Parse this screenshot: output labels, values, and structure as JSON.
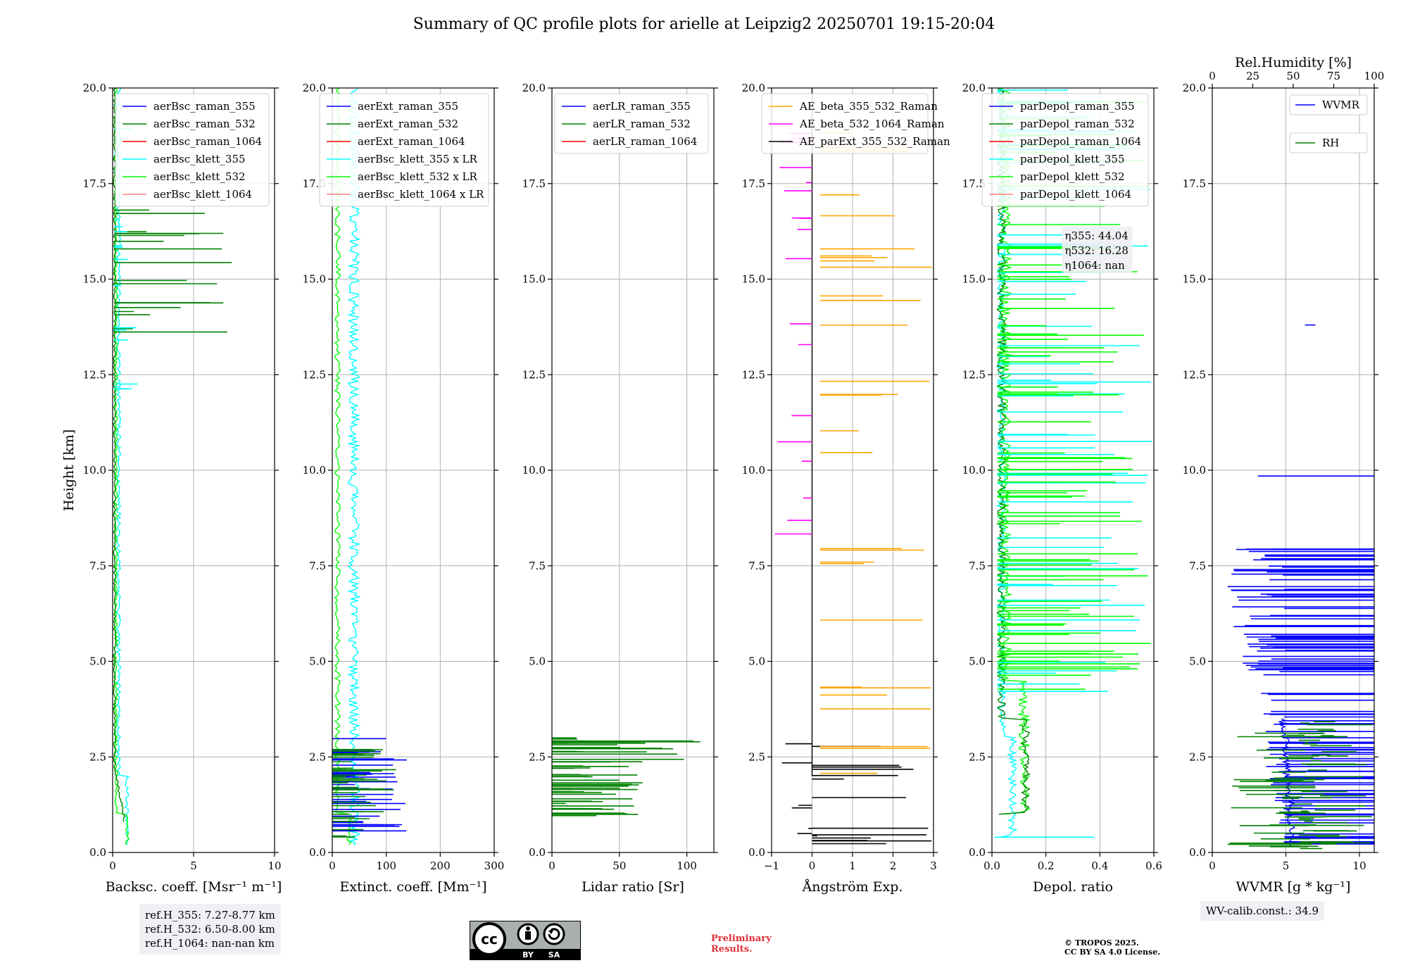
{
  "title": "Summary of QC profile plots for arielle at Leipzig2 20250701 19:15-20:04",
  "chart_data": [
    {
      "type": "line",
      "id": "backscatter",
      "xlabel": "Backsc. coeff. [Msr⁻¹ m⁻¹]",
      "ylabel": "Height [km]",
      "xlim": [
        0,
        10
      ],
      "ylim": [
        0,
        20
      ],
      "xticks": [
        0,
        5,
        10
      ],
      "yticks": [
        0.0,
        2.5,
        5.0,
        7.5,
        10.0,
        12.5,
        15.0,
        17.5,
        20.0
      ],
      "grid": true,
      "legend_position": "top-right",
      "series": [
        {
          "name": "aerBsc_raman_355",
          "color": "#0000ff"
        },
        {
          "name": "aerBsc_raman_532",
          "color": "#008000"
        },
        {
          "name": "aerBsc_raman_1064",
          "color": "#ff0000"
        },
        {
          "name": "aerBsc_klett_355",
          "color": "#00ffff"
        },
        {
          "name": "aerBsc_klett_532",
          "color": "#00ff00"
        },
        {
          "name": "aerBsc_klett_1064",
          "color": "#ff7f7f"
        }
      ]
    },
    {
      "type": "line",
      "id": "extinction",
      "xlabel": "Extinct. coeff. [Mm⁻¹]",
      "xlim": [
        0,
        300
      ],
      "ylim": [
        0,
        20
      ],
      "xticks": [
        0,
        100,
        200,
        300
      ],
      "yticks": [
        0.0,
        2.5,
        5.0,
        7.5,
        10.0,
        12.5,
        15.0,
        17.5,
        20.0
      ],
      "grid": true,
      "legend_position": "top-right",
      "series": [
        {
          "name": "aerExt_raman_355",
          "color": "#0000ff"
        },
        {
          "name": "aerExt_raman_532",
          "color": "#008000"
        },
        {
          "name": "aerExt_raman_1064",
          "color": "#ff0000"
        },
        {
          "name": "aerBsc_klett_355 x LR",
          "color": "#00ffff"
        },
        {
          "name": "aerBsc_klett_532 x LR",
          "color": "#00ff00"
        },
        {
          "name": "aerBsc_klett_1064 x LR",
          "color": "#ff7f7f"
        }
      ]
    },
    {
      "type": "line",
      "id": "lidar_ratio",
      "xlabel": "Lidar ratio [Sr]",
      "xlim": [
        0,
        120
      ],
      "ylim": [
        0,
        20
      ],
      "xticks": [
        0,
        50,
        100
      ],
      "yticks": [
        0.0,
        2.5,
        5.0,
        7.5,
        10.0,
        12.5,
        15.0,
        17.5,
        20.0
      ],
      "grid": true,
      "legend_position": "top-right",
      "series": [
        {
          "name": "aerLR_raman_355",
          "color": "#0000ff"
        },
        {
          "name": "aerLR_raman_532",
          "color": "#008000"
        },
        {
          "name": "aerLR_raman_1064",
          "color": "#ff0000"
        }
      ]
    },
    {
      "type": "line",
      "id": "angstrom",
      "xlabel": "Ångström Exp.",
      "xlim": [
        -1,
        3
      ],
      "ylim": [
        0,
        20
      ],
      "xticks": [
        -1,
        0,
        1,
        2,
        3
      ],
      "yticks": [
        0.0,
        2.5,
        5.0,
        7.5,
        10.0,
        12.5,
        15.0,
        17.5,
        20.0
      ],
      "grid": true,
      "legend_position": "top-right",
      "series": [
        {
          "name": "AE_beta_355_532_Raman",
          "color": "#ffa500"
        },
        {
          "name": "AE_beta_532_1064_Raman",
          "color": "#ff00ff"
        },
        {
          "name": "AE_parExt_355_532_Raman",
          "color": "#000000"
        }
      ]
    },
    {
      "type": "line",
      "id": "depol",
      "xlabel": "Depol. ratio",
      "xlim": [
        0,
        0.6
      ],
      "ylim": [
        0,
        20
      ],
      "xticks": [
        0.0,
        0.2,
        0.4,
        0.6
      ],
      "yticks": [
        0.0,
        2.5,
        5.0,
        7.5,
        10.0,
        12.5,
        15.0,
        17.5,
        20.0
      ],
      "grid": true,
      "legend_position": "top-right",
      "annotation": [
        "η355: 44.04",
        "η532: 16.28",
        "η1064: nan"
      ],
      "series": [
        {
          "name": "parDepol_raman_355",
          "color": "#0000ff"
        },
        {
          "name": "parDepol_raman_532",
          "color": "#008000"
        },
        {
          "name": "parDepol_raman_1064",
          "color": "#ff0000"
        },
        {
          "name": "parDepol_klett_355",
          "color": "#00ffff"
        },
        {
          "name": "parDepol_klett_532",
          "color": "#00ff00"
        },
        {
          "name": "parDepol_klett_1064",
          "color": "#ff7f7f"
        }
      ]
    },
    {
      "type": "line",
      "id": "wvmr",
      "xlabel": "WVMR [g * kg⁻¹]",
      "top_xlabel": "Rel.Humidity [%]",
      "xlim": [
        0,
        11
      ],
      "ylim": [
        0,
        20
      ],
      "top_xlim": [
        0,
        100
      ],
      "xticks": [
        0,
        5,
        10
      ],
      "top_xticks": [
        0,
        25,
        50,
        75,
        100
      ],
      "yticks": [
        0.0,
        2.5,
        5.0,
        7.5,
        10.0,
        12.5,
        15.0,
        17.5,
        20.0
      ],
      "grid": true,
      "legend_position": "top-right",
      "series": [
        {
          "name": "WVMR",
          "color": "#0000ff"
        },
        {
          "name": "RH",
          "color": "#008000"
        }
      ]
    }
  ],
  "refbox": [
    "ref.H_355: 7.27-8.77 km",
    "ref.H_532: 6.50-8.00 km",
    "ref.H_1064: nan-nan km"
  ],
  "wvcalib": "WV-calib.const.: 34.9",
  "preliminary": [
    "Preliminary",
    "Results."
  ],
  "copyright": [
    "© TROPOS 2025.",
    "CC BY SA 4.0 License."
  ],
  "cc_badge": {
    "by": "BY",
    "sa": "SA"
  }
}
